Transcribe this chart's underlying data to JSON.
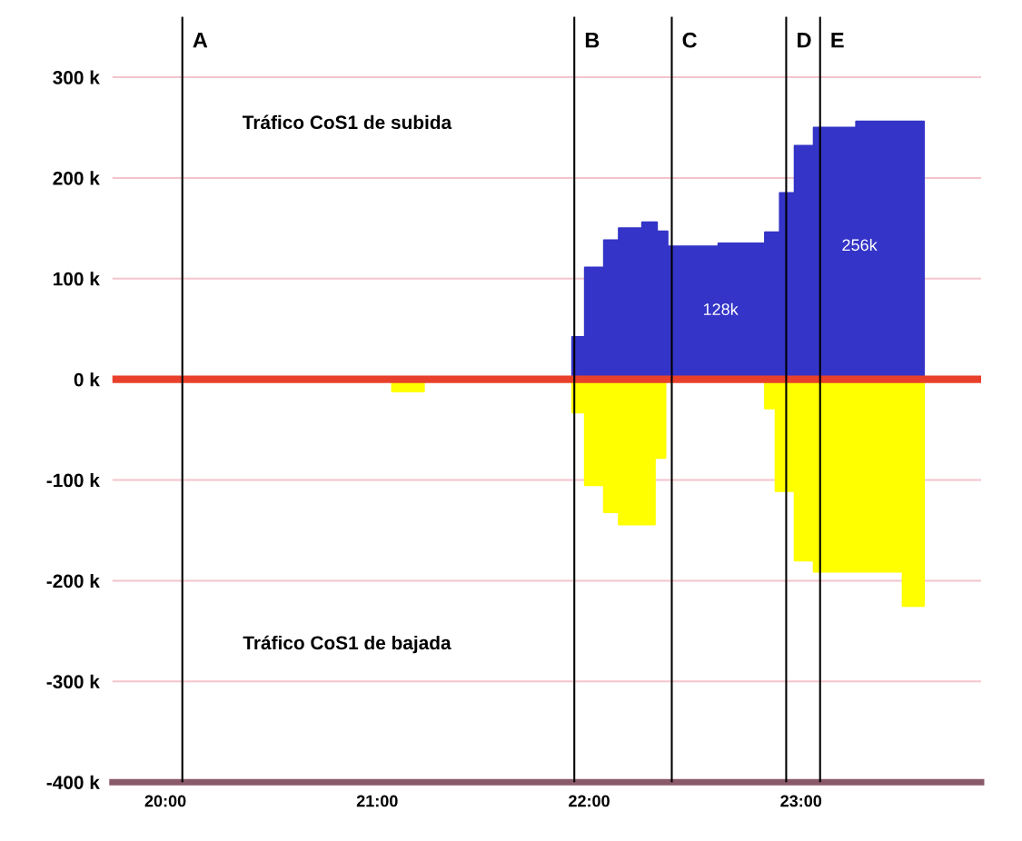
{
  "chart_data": {
    "type": "area",
    "xlim": [
      19.75,
      23.85
    ],
    "ylim": [
      -400,
      360
    ],
    "xticks": [
      {
        "value": 20,
        "label": "20:00"
      },
      {
        "value": 21,
        "label": "21:00"
      },
      {
        "value": 22,
        "label": "22:00"
      },
      {
        "value": 23,
        "label": "23:00"
      }
    ],
    "yticks": [
      {
        "value": -400,
        "label": "-400 k"
      },
      {
        "value": -300,
        "label": "-300 k"
      },
      {
        "value": -200,
        "label": "-200 k"
      },
      {
        "value": -100,
        "label": "-100 k"
      },
      {
        "value": 0,
        "label": "0 k"
      },
      {
        "value": 100,
        "label": "100 k"
      },
      {
        "value": 200,
        "label": "200 k"
      },
      {
        "value": 300,
        "label": "300 k"
      }
    ],
    "grid": "y",
    "legend": false,
    "series": [
      {
        "color": "#3434c8",
        "x": [
          21.92,
          21.92,
          21.98,
          21.98,
          22.07,
          22.07,
          22.14,
          22.14,
          22.25,
          22.25,
          22.32,
          22.32,
          22.37,
          22.37,
          22.61,
          22.61,
          22.83,
          22.83,
          22.9,
          22.9,
          22.97,
          22.97,
          23.06,
          23.06,
          23.26,
          23.26,
          23.58,
          23.58
        ],
        "values": [
          0,
          42,
          42,
          111,
          111,
          138,
          138,
          150,
          150,
          156,
          156,
          147,
          147,
          132,
          132,
          135,
          135,
          146,
          146,
          185,
          185,
          232,
          232,
          250,
          250,
          256,
          256,
          0
        ]
      },
      {
        "color": "#ffff00",
        "x": [
          21.07,
          21.07,
          21.22,
          21.22,
          21.92,
          21.92,
          21.98,
          21.98,
          22.07,
          22.07,
          22.14,
          22.14,
          22.31,
          22.31,
          22.36,
          22.36,
          22.83,
          22.83,
          22.88,
          22.88,
          22.97,
          22.97,
          23.06,
          23.06,
          23.48,
          23.48,
          23.58,
          23.58
        ],
        "values": [
          0,
          -12,
          -12,
          0,
          0,
          -33,
          -33,
          -105,
          -105,
          -132,
          -132,
          -144,
          -144,
          -78,
          -78,
          0,
          0,
          -29,
          -29,
          -111,
          -111,
          -180,
          -180,
          -191,
          -191,
          -225,
          -225,
          0
        ]
      }
    ],
    "ref_lines": [
      {
        "axis": "y",
        "value": 0,
        "color": "#e8402a"
      },
      {
        "axis": "x",
        "value": 20.08,
        "label": "A",
        "color": "#000000"
      },
      {
        "axis": "x",
        "value": 21.93,
        "label": "B",
        "color": "#000000"
      },
      {
        "axis": "x",
        "value": 22.39,
        "label": "C",
        "color": "#000000"
      },
      {
        "axis": "x",
        "value": 22.93,
        "label": "D",
        "color": "#000000"
      },
      {
        "axis": "x",
        "value": 23.09,
        "label": "E",
        "color": "#000000"
      }
    ],
    "annotations": [
      "Tráfico CoS1 de subida",
      "Tráfico CoS1 de bajada",
      "128k",
      "256k"
    ]
  }
}
